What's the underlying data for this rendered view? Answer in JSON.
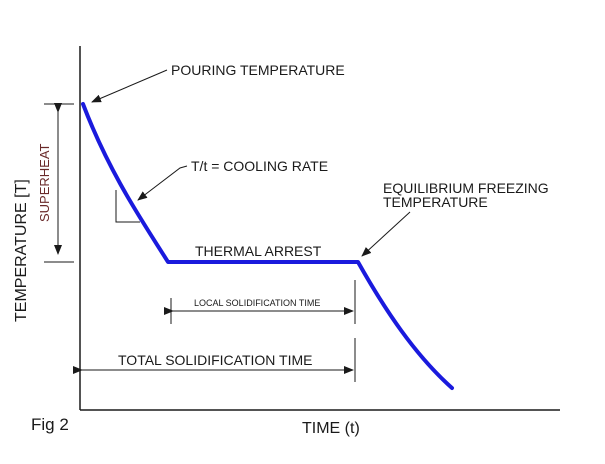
{
  "figure": {
    "label": "Fig 2",
    "x_axis_label": "TIME (t)",
    "y_axis_label": "TEMPERATURE [T]"
  },
  "annotations": {
    "pouring_temperature": "POURING TEMPERATURE",
    "cooling_rate": "T/t = COOLING RATE",
    "equilibrium_freezing_line1": "EQUILIBRIUM FREEZING",
    "equilibrium_freezing_line2": "TEMPERATURE",
    "thermal_arrest": "THERMAL ARREST",
    "local_solidification_time": "LOCAL SOLIDIFICATION TIME",
    "total_solidification_time": "TOTAL SOLIDIFICATION TIME",
    "superheat": "SUPERHEAT"
  },
  "colors": {
    "curve": "#1a1add",
    "lines": "#1a1a1a",
    "superheat_text": "#6a2a2a"
  }
}
